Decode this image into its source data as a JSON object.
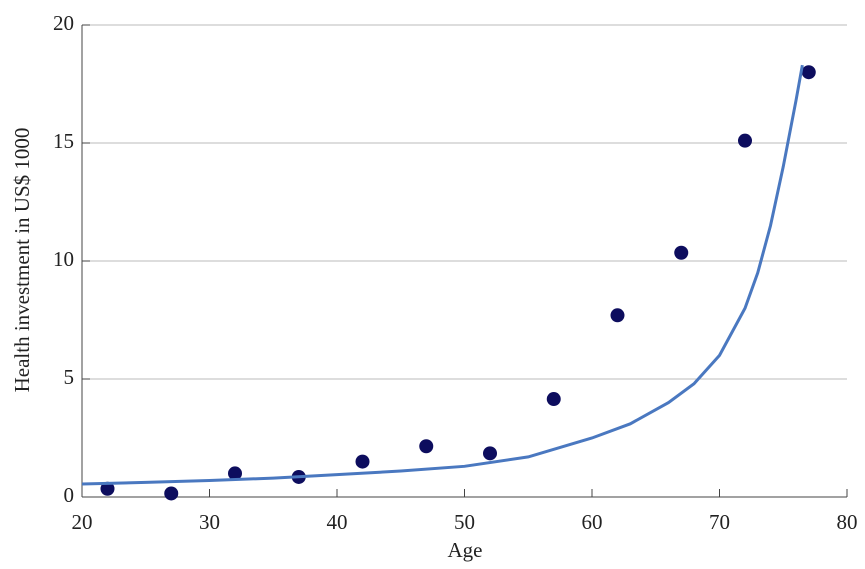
{
  "chart_data": {
    "type": "scatter",
    "xlabel": "Age",
    "ylabel": "Health investment in US$ 1000",
    "xlim": [
      20,
      80
    ],
    "xticks": [
      20,
      30,
      40,
      50,
      60,
      70,
      80
    ],
    "ylim": [
      0,
      20
    ],
    "yticks": [
      0,
      5,
      10,
      15,
      20
    ],
    "grid": true,
    "series": [
      {
        "type": "scatter",
        "color": "#0d0d5e",
        "x": [
          22,
          27,
          32,
          37,
          42,
          47,
          52,
          57,
          62,
          67,
          72,
          77
        ],
        "values": [
          0.35,
          0.15,
          1.0,
          0.85,
          1.5,
          2.15,
          1.85,
          4.15,
          7.7,
          10.35,
          15.1,
          18.0
        ]
      },
      {
        "type": "line",
        "color": "#4a78c0",
        "x": [
          20,
          25,
          30,
          35,
          40,
          45,
          50,
          55,
          60,
          63,
          66,
          68,
          70,
          72,
          73,
          74,
          75,
          76,
          76.5
        ],
        "values": [
          0.55,
          0.62,
          0.7,
          0.8,
          0.95,
          1.1,
          1.3,
          1.7,
          2.5,
          3.1,
          4.0,
          4.8,
          6.0,
          8.0,
          9.5,
          11.5,
          14.0,
          16.8,
          18.3
        ]
      }
    ]
  }
}
